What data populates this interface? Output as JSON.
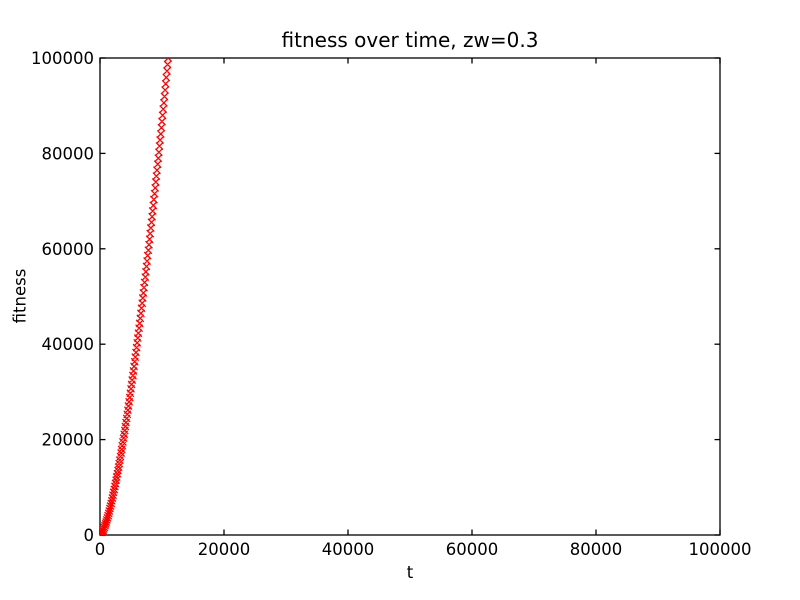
{
  "figure": {
    "background": "#ffffff",
    "frame_color": "#000000"
  },
  "chart_data": {
    "type": "scatter",
    "title": "fitness over time, zw=0.3",
    "xlabel": "t",
    "ylabel": "fitness",
    "xlim": [
      0,
      100000
    ],
    "ylim": [
      0,
      100000
    ],
    "xticks": [
      0,
      20000,
      40000,
      60000,
      80000,
      100000
    ],
    "yticks": [
      0,
      20000,
      40000,
      60000,
      80000,
      100000
    ],
    "grid": false,
    "legend": null,
    "marker": "x",
    "marker_color": "#ff0000",
    "series": [
      {
        "name": "fitness",
        "x": [
          0,
          100,
          200,
          300,
          400,
          500,
          600,
          700,
          800,
          900,
          1000,
          1100,
          1200,
          1300,
          1400,
          1500,
          1600,
          1700,
          1800,
          1900,
          2000,
          2100,
          2200,
          2300,
          2400,
          2500,
          2600,
          2700,
          2800,
          2900,
          3000,
          3100,
          3200,
          3300,
          3400,
          3500,
          3600,
          3700,
          3800,
          3900,
          4000,
          4100,
          4200,
          4300,
          4400,
          4500,
          4600,
          4700,
          4800,
          4900,
          5000,
          5100,
          5200,
          5300,
          5400,
          5500,
          5600,
          5700,
          5800,
          5900,
          6000,
          6100,
          6200,
          6300,
          6400,
          6500,
          6600,
          6700,
          6800,
          6900,
          7000,
          7100,
          7200,
          7300,
          7400,
          7500,
          7600,
          7700,
          7800,
          7900,
          8000,
          8100,
          8200,
          8300,
          8400,
          8500,
          8600,
          8700,
          8800,
          8900,
          9000,
          9100,
          9200,
          9300,
          9400,
          9500,
          9600,
          9700,
          9800,
          9900,
          10000,
          10100,
          10200,
          10300,
          10400,
          10500,
          10600,
          10700,
          10800,
          10900,
          11000
        ],
        "y": [
          0,
          87,
          245,
          450,
          693,
          969,
          1274,
          1605,
          1961,
          2340,
          2741,
          3162,
          3603,
          4063,
          4541,
          5036,
          5548,
          6076,
          6620,
          7179,
          7753,
          8341,
          8944,
          9561,
          10191,
          10835,
          11491,
          12161,
          12843,
          13537,
          14243,
          14961,
          15691,
          16432,
          17184,
          17948,
          18723,
          19508,
          20304,
          21111,
          21928,
          22756,
          23593,
          24441,
          25299,
          26166,
          27043,
          27929,
          28826,
          29731,
          30646,
          31570,
          32503,
          33445,
          34396,
          35356,
          36324,
          37302,
          38287,
          39282,
          40285,
          41296,
          42316,
          43344,
          44380,
          45424,
          46477,
          47537,
          48605,
          49681,
          50765,
          51856,
          52956,
          54063,
          55177,
          56300,
          57429,
          58565,
          59709,
          60861,
          62022,
          63190,
          64362,
          65546,
          66732,
          67927,
          69128,
          70337,
          71554,
          72777,
          74008,
          75244,
          76488,
          77738,
          78996,
          80259,
          81530,
          82808,
          84091,
          85381,
          86678,
          87982,
          89292,
          90608,
          91931,
          93260,
          94595,
          95937,
          97285,
          98640,
          100000
        ]
      }
    ]
  }
}
